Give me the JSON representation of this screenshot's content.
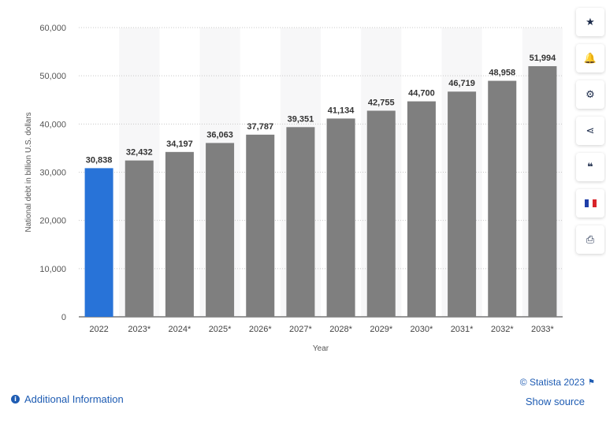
{
  "chart_data": {
    "type": "bar",
    "categories": [
      "2022",
      "2023*",
      "2024*",
      "2025*",
      "2026*",
      "2027*",
      "2028*",
      "2029*",
      "2030*",
      "2031*",
      "2032*",
      "2033*"
    ],
    "values": [
      30838,
      32432,
      34197,
      36063,
      37787,
      39351,
      41134,
      42755,
      44700,
      46719,
      48958,
      51994
    ],
    "value_labels": [
      "30,838",
      "32,432",
      "34,197",
      "36,063",
      "37,787",
      "39,351",
      "41,134",
      "42,755",
      "44,700",
      "46,719",
      "48,958",
      "51,994"
    ],
    "xlabel": "Year",
    "ylabel": "National debt in billion U.S. dollars",
    "ylim": [
      0,
      60000
    ],
    "yticks": [
      0,
      10000,
      20000,
      30000,
      40000,
      50000,
      60000
    ],
    "ytick_labels": [
      "0",
      "10,000",
      "20,000",
      "30,000",
      "40,000",
      "50,000",
      "60,000"
    ],
    "grid": true,
    "colors": {
      "highlight": "#2873d8",
      "bars": "#7f7f7f",
      "band": "#f7f7f8",
      "grid": "#c8c8c8"
    },
    "highlight_index": 0
  },
  "toolbar": {
    "buttons": [
      {
        "name": "star-icon",
        "glyph": "★"
      },
      {
        "name": "bell-icon",
        "glyph": "🔔"
      },
      {
        "name": "gear-icon",
        "glyph": "⚙"
      },
      {
        "name": "share-icon",
        "glyph": "⋖"
      },
      {
        "name": "quote-icon",
        "glyph": "❝"
      },
      {
        "name": "flag-icon",
        "glyph": ""
      },
      {
        "name": "print-icon",
        "glyph": "⎙"
      }
    ]
  },
  "footer": {
    "additional_info": "Additional Information",
    "credit": "© Statista 2023",
    "show_source": "Show source"
  }
}
